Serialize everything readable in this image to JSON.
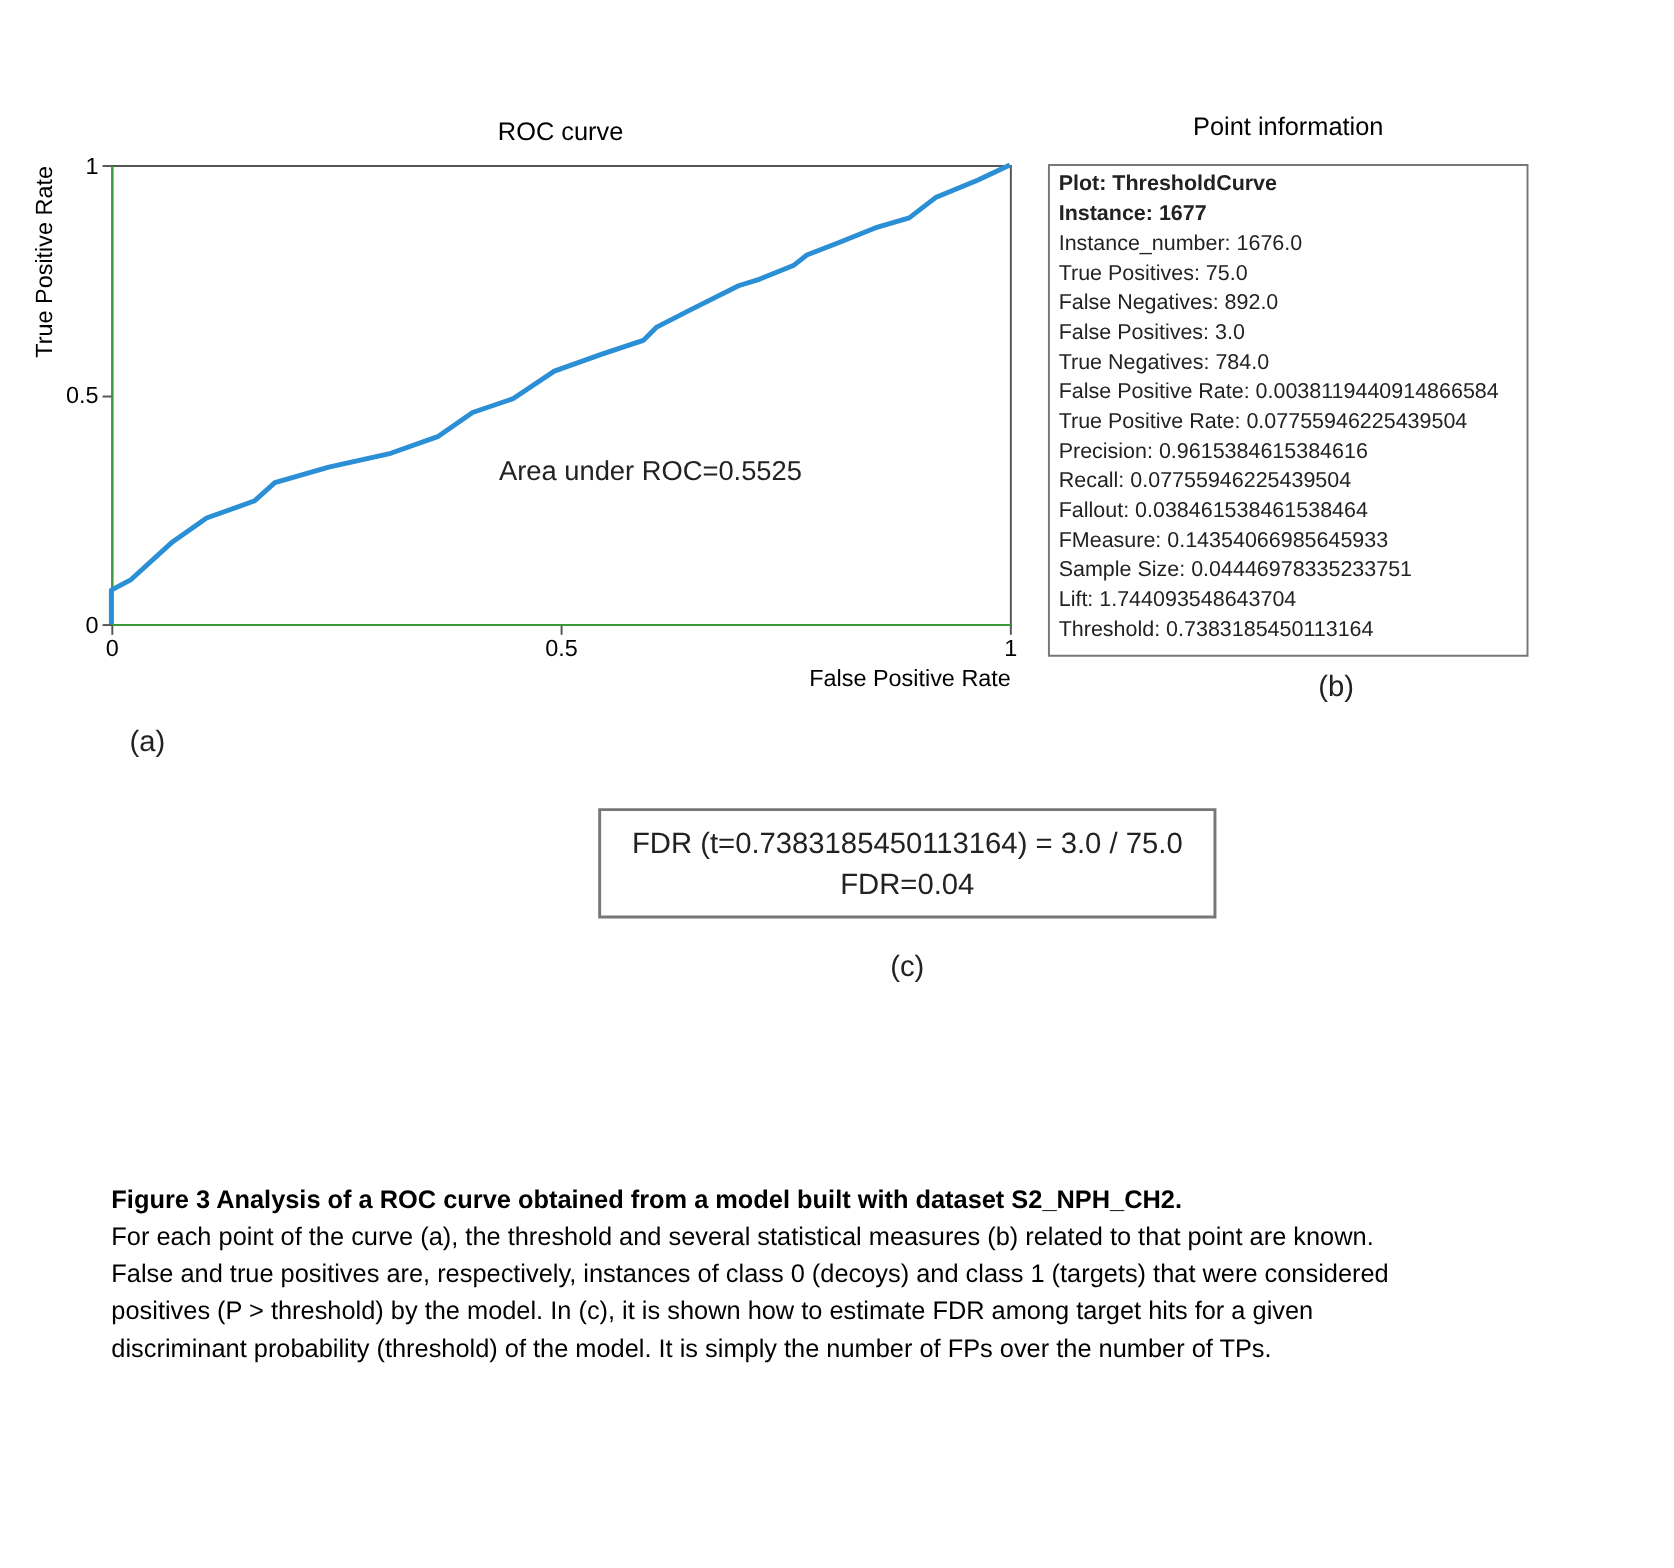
{
  "chart_data": [
    {
      "type": "line",
      "title": "ROC curve",
      "xlabel": "False Positive Rate",
      "ylabel": "True Positive Rate",
      "x": [
        0,
        0,
        0.022,
        0.068,
        0.106,
        0.159,
        0.182,
        0.242,
        0.311,
        0.364,
        0.402,
        0.447,
        0.493,
        0.546,
        0.592,
        0.607,
        0.645,
        0.698,
        0.721,
        0.759,
        0.774,
        0.812,
        0.85,
        0.888,
        0.918,
        0.964,
        1
      ],
      "series": [
        {
          "color": "#2b8fd6",
          "values": [
            0,
            0.074,
            0.097,
            0.179,
            0.231,
            0.268,
            0.308,
            0.342,
            0.372,
            0.409,
            0.461,
            0.491,
            0.551,
            0.588,
            0.618,
            0.647,
            0.685,
            0.737,
            0.751,
            0.781,
            0.804,
            0.833,
            0.863,
            0.885,
            0.93,
            0.967,
            1
          ]
        }
      ],
      "xlim": [
        0,
        1
      ],
      "ylim": [
        0,
        1
      ],
      "xticks": [
        0,
        0.5,
        1
      ],
      "yticks": [
        0,
        0.5,
        1
      ],
      "grid": false,
      "marker": "none",
      "line_style": "solid",
      "annotations": [
        "Area under ROC=0.5525",
        "(a)"
      ]
    },
    {
      "type": "other",
      "title": "Point information",
      "annotations": [
        "Plot: ThresholdCurve",
        "Instance: 1677",
        "Instance_number: 1676.0",
        "True Positives: 75.0",
        "False Negatives: 892.0",
        "False Positives: 3.0",
        "True Negatives: 784.0",
        "False Positive Rate: 0.0038119440914866584",
        "True Positive Rate: 0.07755946225439504",
        "Precision: 0.9615384615384616",
        "Recall: 0.07755946225439504",
        "Fallout: 0.038461538461538464",
        "FMeasure: 0.14354066985645933",
        "Sample Size: 0.04446978335233751",
        "Lift: 1.744093548643704",
        "Threshold: 0.7383185450113164",
        "(b)"
      ]
    },
    {
      "type": "other",
      "annotations": [
        "FDR (t=0.7383185450113164) = 3.0 / 75.0",
        "FDR=0.04",
        "(c)",
        "Figure 3 Analysis of a ROC curve obtained from a model built with dataset S2_NPH_CH2.",
        "For each point of the curve (a), the threshold and several statistical measures (b) related to that point are known. False and true positives are, respectively, instances of class 0 (decoys) and class 1 (targets) that were considered positives (P > threshold) by the model. In (c), it is shown how to estimate FDR among target hits for a given discriminant probability (threshold) of the model. It is simply the number of FPs over the number of TPs."
      ]
    }
  ]
}
